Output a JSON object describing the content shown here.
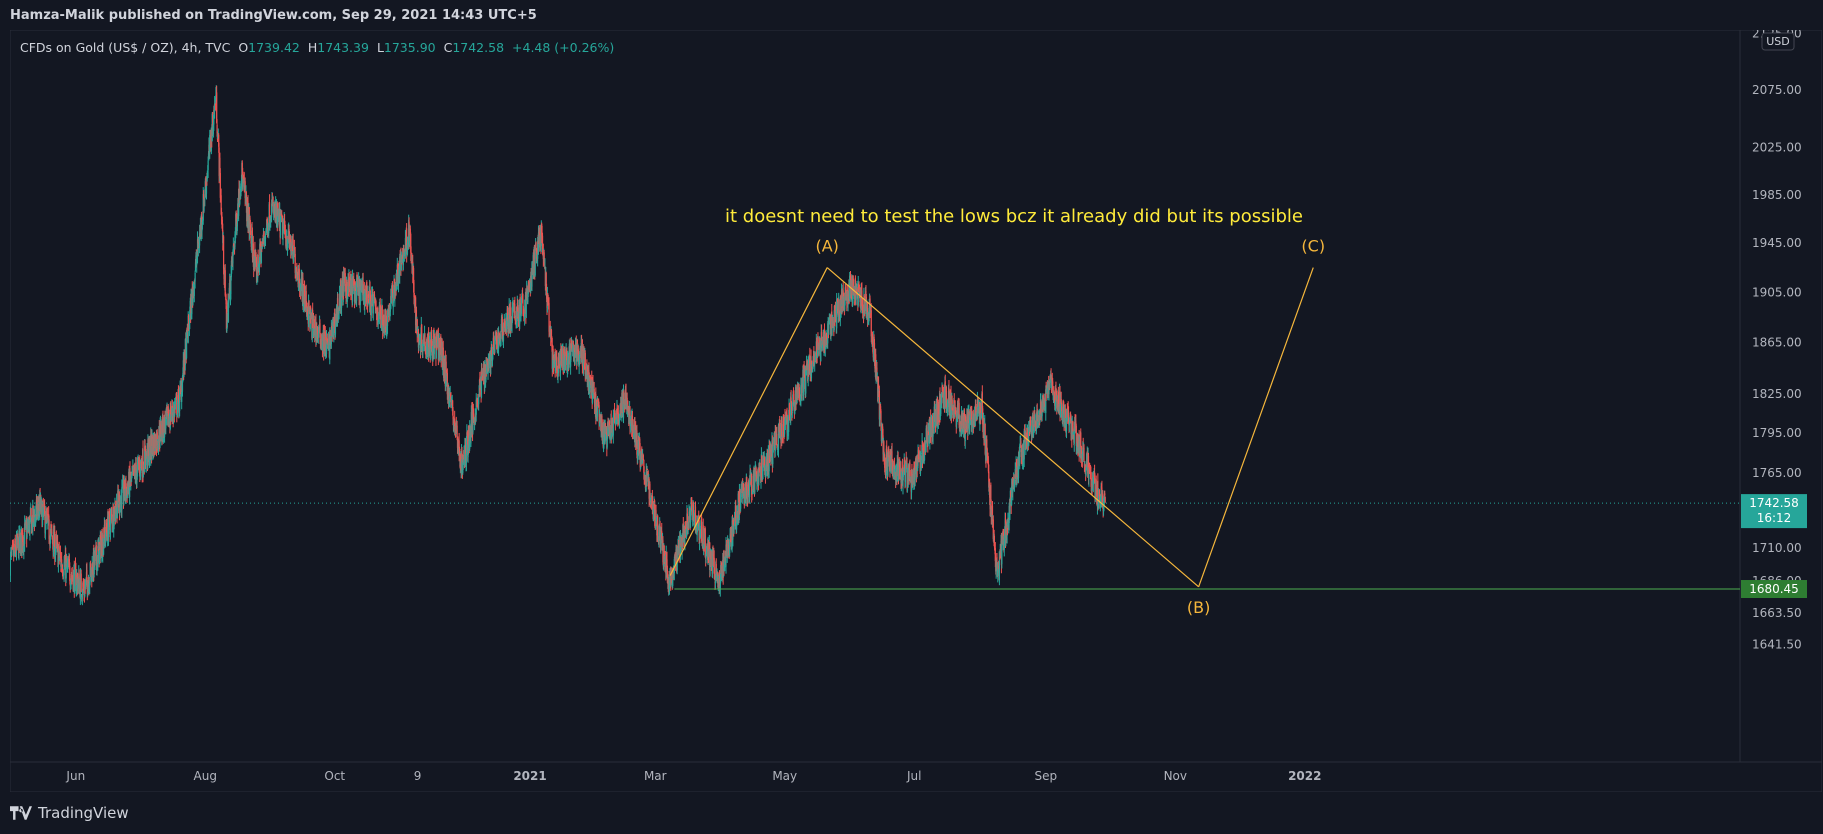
{
  "header": {
    "published_by": "Hamza-Malik published on TradingView.com, Sep 29, 2021 14:43 UTC+5"
  },
  "legend": {
    "symbol": "CFDs on Gold (US$ / OZ), 4h, TVC",
    "open_label": "O",
    "open": "1739.42",
    "high_label": "H",
    "high": "1743.39",
    "low_label": "L",
    "low": "1735.90",
    "close_label": "C",
    "close": "1742.58",
    "change": "+4.48 (+0.26%)"
  },
  "footer": {
    "brand": "TradingView"
  },
  "colors": {
    "background": "#131722",
    "up": "#26a69a",
    "down": "#ef5350",
    "wave_line": "#f6b73c",
    "support_line": "#4caf50",
    "annotation": "#ffeb3b",
    "price_badge": "#26a69a",
    "support_badge": "#2e7d32"
  },
  "chart_data": {
    "type": "candlestick",
    "currency": "USD",
    "price_axis": {
      "ticks": [
        "2125.00",
        "2075.00",
        "2025.00",
        "1985.00",
        "1945.00",
        "1905.00",
        "1865.00",
        "1825.00",
        "1795.00",
        "1765.00",
        "1742.58",
        "1710.00",
        "1686.00",
        "1680.45",
        "1663.50",
        "1641.50"
      ],
      "scale": "log"
    },
    "time_axis": {
      "labels": [
        "Jun",
        "Aug",
        "Oct",
        "9",
        "2021",
        "Mar",
        "May",
        "Jul",
        "Sep",
        "Nov",
        "2022"
      ],
      "bold": [
        "2021",
        "2022"
      ]
    },
    "current_price": "1742.58",
    "countdown": "16:12",
    "support_level": "1680.45",
    "price_path": [
      [
        "2020-05-01",
        1700
      ],
      [
        "2020-05-15",
        1740
      ],
      [
        "2020-05-25",
        1700
      ],
      [
        "2020-06-05",
        1680
      ],
      [
        "2020-06-20",
        1740
      ],
      [
        "2020-07-05",
        1780
      ],
      [
        "2020-07-20",
        1820
      ],
      [
        "2020-07-31",
        1975
      ],
      [
        "2020-08-06",
        2070
      ],
      [
        "2020-08-11",
        1880
      ],
      [
        "2020-08-18",
        2005
      ],
      [
        "2020-08-25",
        1920
      ],
      [
        "2020-09-01",
        1975
      ],
      [
        "2020-09-10",
        1945
      ],
      [
        "2020-09-20",
        1880
      ],
      [
        "2020-09-28",
        1860
      ],
      [
        "2020-10-05",
        1910
      ],
      [
        "2020-10-15",
        1905
      ],
      [
        "2020-10-25",
        1880
      ],
      [
        "2020-11-05",
        1955
      ],
      [
        "2020-11-09",
        1870
      ],
      [
        "2020-11-20",
        1860
      ],
      [
        "2020-11-30",
        1770
      ],
      [
        "2020-12-10",
        1840
      ],
      [
        "2020-12-20",
        1880
      ],
      [
        "2020-12-30",
        1895
      ],
      [
        "2021-01-06",
        1955
      ],
      [
        "2021-01-12",
        1845
      ],
      [
        "2021-01-25",
        1860
      ],
      [
        "2021-02-05",
        1790
      ],
      [
        "2021-02-15",
        1820
      ],
      [
        "2021-02-25",
        1760
      ],
      [
        "2021-03-08",
        1685
      ],
      [
        "2021-03-18",
        1740
      ],
      [
        "2021-03-31",
        1685
      ],
      [
        "2021-04-10",
        1745
      ],
      [
        "2021-04-25",
        1780
      ],
      [
        "2021-05-10",
        1835
      ],
      [
        "2021-05-20",
        1870
      ],
      [
        "2021-06-01",
        1910
      ],
      [
        "2021-06-10",
        1890
      ],
      [
        "2021-06-17",
        1775
      ],
      [
        "2021-06-30",
        1760
      ],
      [
        "2021-07-15",
        1825
      ],
      [
        "2021-07-25",
        1800
      ],
      [
        "2021-08-02",
        1815
      ],
      [
        "2021-08-09",
        1690
      ],
      [
        "2021-08-20",
        1780
      ],
      [
        "2021-09-03",
        1830
      ],
      [
        "2021-09-15",
        1795
      ],
      [
        "2021-09-25",
        1750
      ],
      [
        "2021-09-29",
        1742.58
      ]
    ],
    "waves": [
      {
        "label": "(A)",
        "points": [
          [
            "2021-03-08",
            1690
          ],
          [
            "2021-05-21",
            1925
          ]
        ]
      },
      {
        "label": "(B)",
        "points": [
          [
            "2021-05-21",
            1925
          ],
          [
            "2021-11-12",
            1682
          ]
        ]
      },
      {
        "label": "(C)",
        "points": [
          [
            "2021-11-12",
            1682
          ],
          [
            "2022-01-05",
            1925
          ]
        ]
      }
    ],
    "support_line": {
      "from": "2021-03-10",
      "value": 1680.45
    },
    "annotations": [
      {
        "text": "it doesnt need to test the lows bcz it already did but its possible"
      }
    ]
  }
}
